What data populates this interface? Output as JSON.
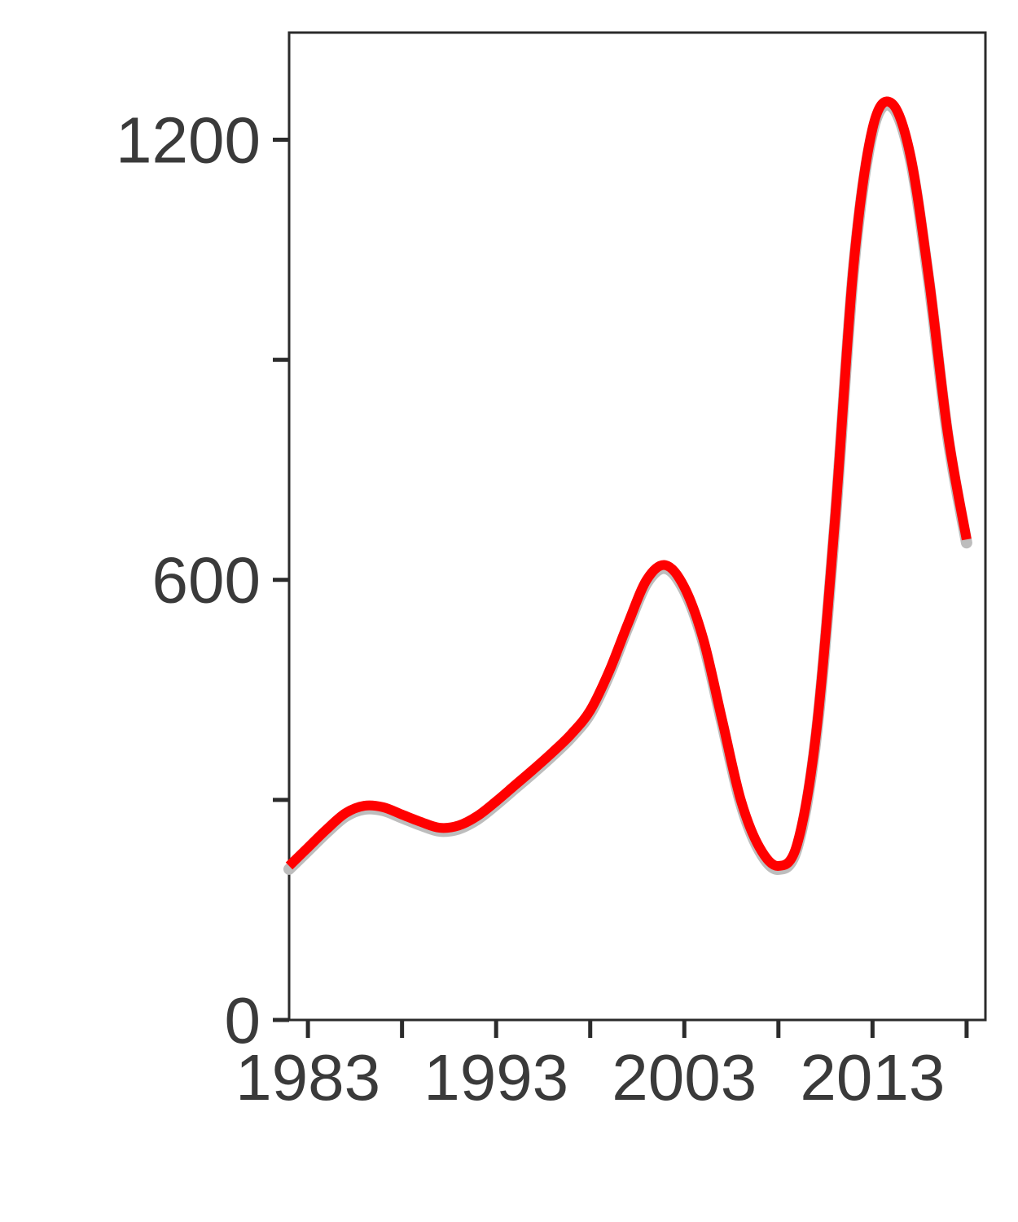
{
  "chart_data": {
    "type": "line",
    "title": "",
    "xlabel": "",
    "ylabel": "",
    "xlim": [
      1982,
      2019
    ],
    "ylim": [
      0,
      1346
    ],
    "x_ticks": [
      1983,
      1988,
      1993,
      1998,
      2003,
      2008,
      2013,
      2018
    ],
    "x_tick_labels": [
      "1983",
      "",
      "1993",
      "",
      "2003",
      "",
      "2013",
      ""
    ],
    "y_ticks": [
      0,
      300,
      600,
      900,
      1200
    ],
    "y_tick_labels": [
      "0",
      "",
      "600",
      "",
      "1200"
    ],
    "grid": false,
    "legend": "none",
    "series": [
      {
        "color": "#ff0000",
        "x": [
          1982,
          1983,
          1984,
          1985,
          1986,
          1987,
          1988,
          1989,
          1990,
          1991,
          1992,
          1993,
          1994,
          1995,
          1996,
          1997,
          1998,
          1999,
          2000,
          2001,
          2002,
          2003,
          2004,
          2005,
          2006,
          2007,
          2008,
          2009,
          2010,
          2011,
          2012,
          2013,
          2014,
          2015,
          2016,
          2017,
          2018
        ],
        "y": [
          210,
          235,
          260,
          282,
          292,
          290,
          280,
          270,
          262,
          265,
          278,
          298,
          320,
          342,
          365,
          390,
          422,
          475,
          540,
          600,
          620,
          590,
          520,
          410,
          300,
          235,
          210,
          240,
          390,
          680,
          1030,
          1215,
          1250,
          1180,
          1010,
          800,
          655
        ]
      }
    ]
  }
}
